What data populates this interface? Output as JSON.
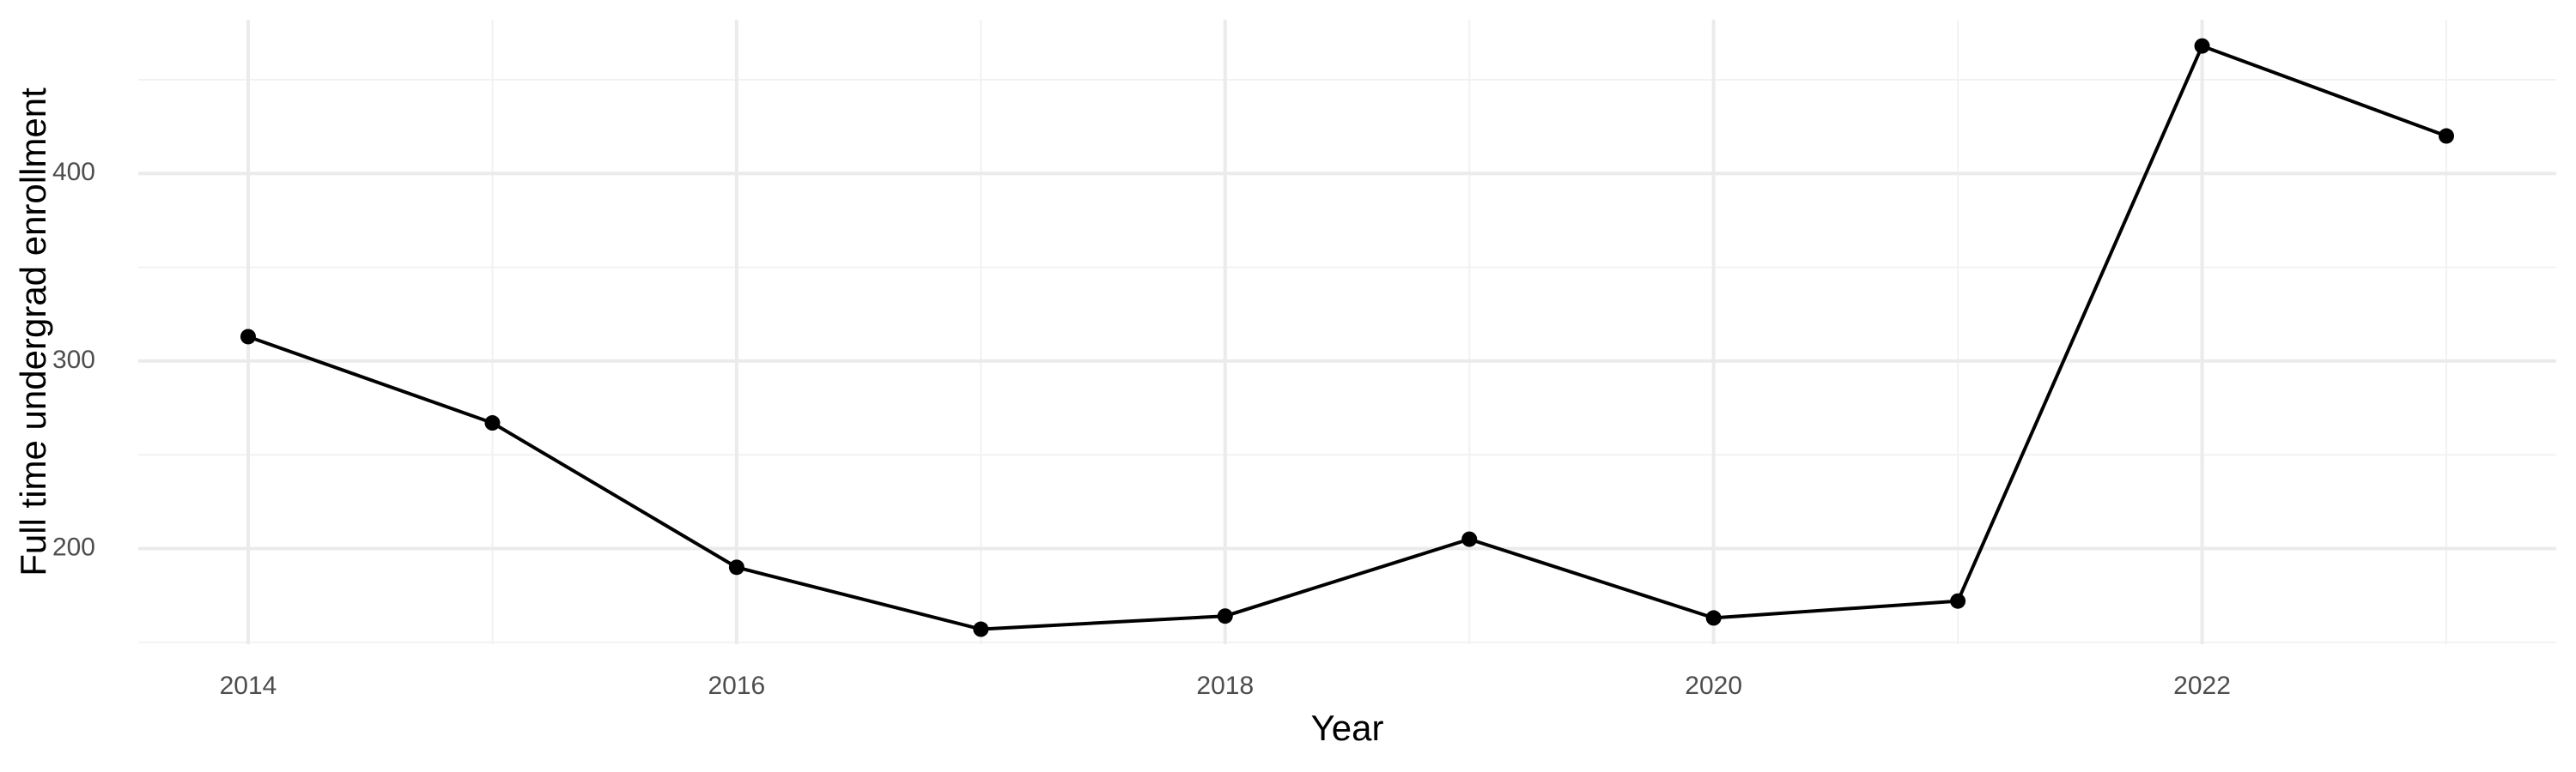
{
  "chart_data": {
    "type": "line",
    "x_label": "Year",
    "y_label": "Full time undergrad enrollment",
    "x": [
      2014,
      2015,
      2016,
      2017,
      2018,
      2019,
      2020,
      2021,
      2022,
      2023
    ],
    "series": [
      {
        "name": "Full time undergrad enrollment",
        "color": "#000000",
        "values": [
          313,
          267,
          190,
          157,
          164,
          205,
          163,
          172,
          468,
          420
        ]
      }
    ],
    "xlim": [
      2013.55,
      2023.45
    ],
    "xticks": [
      2014,
      2016,
      2018,
      2020,
      2022
    ],
    "xminorticks": [
      2015,
      2017,
      2019,
      2021,
      2023
    ],
    "ylim": [
      149,
      482
    ],
    "yticks": [
      200,
      300,
      400
    ],
    "yminorticks": [
      150,
      250,
      350,
      450
    ],
    "grid": true
  }
}
